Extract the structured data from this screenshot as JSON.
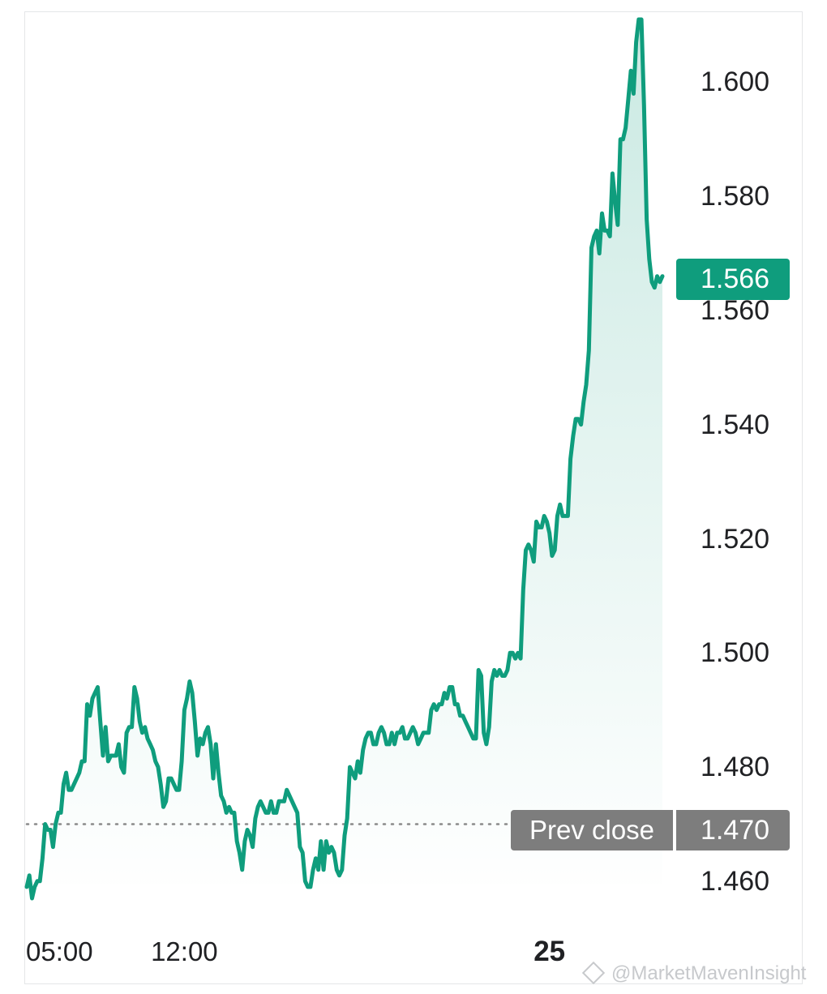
{
  "chart_data": {
    "type": "area",
    "ylim": [
      1.456,
      1.611
    ],
    "y_ticks": [
      "1.600",
      "1.580",
      "1.560",
      "1.540",
      "1.520",
      "1.500",
      "1.480",
      "1.460"
    ],
    "y_tick_values": [
      1.6,
      1.58,
      1.56,
      1.54,
      1.52,
      1.5,
      1.48,
      1.46
    ],
    "x_ticks": [
      {
        "label": "05:00",
        "index": 0
      },
      {
        "label": "12:00",
        "index": 60
      },
      {
        "label": "25",
        "index": 199,
        "bold": true
      }
    ],
    "current_price": "1.566",
    "current_value": 1.566,
    "prev_close_label": "Prev close",
    "prev_close": "1.470",
    "prev_close_value": 1.47,
    "line_color": "#0f9d7d",
    "series": [
      {
        "values": [
          1.459,
          1.461,
          1.457,
          1.459,
          1.46,
          1.46,
          1.464,
          1.47,
          1.469,
          1.469,
          1.466,
          1.47,
          1.472,
          1.472,
          1.477,
          1.479,
          1.476,
          1.476,
          1.477,
          1.478,
          1.479,
          1.481,
          1.481,
          1.491,
          1.489,
          1.492,
          1.493,
          1.494,
          1.488,
          1.482,
          1.487,
          1.481,
          1.482,
          1.482,
          1.482,
          1.484,
          1.48,
          1.479,
          1.486,
          1.487,
          1.487,
          1.494,
          1.492,
          1.488,
          1.486,
          1.487,
          1.485,
          1.484,
          1.483,
          1.481,
          1.48,
          1.477,
          1.473,
          1.474,
          1.478,
          1.478,
          1.477,
          1.476,
          1.476,
          1.481,
          1.49,
          1.492,
          1.495,
          1.493,
          1.488,
          1.482,
          1.485,
          1.484,
          1.486,
          1.487,
          1.484,
          1.478,
          1.484,
          1.479,
          1.475,
          1.474,
          1.472,
          1.473,
          1.472,
          1.472,
          1.467,
          1.465,
          1.462,
          1.467,
          1.469,
          1.468,
          1.466,
          1.471,
          1.473,
          1.474,
          1.473,
          1.472,
          1.472,
          1.474,
          1.472,
          1.472,
          1.474,
          1.474,
          1.474,
          1.476,
          1.475,
          1.474,
          1.473,
          1.472,
          1.466,
          1.465,
          1.46,
          1.459,
          1.459,
          1.462,
          1.464,
          1.462,
          1.467,
          1.462,
          1.467,
          1.465,
          1.466,
          1.465,
          1.462,
          1.461,
          1.462,
          1.468,
          1.471,
          1.48,
          1.479,
          1.478,
          1.481,
          1.479,
          1.483,
          1.485,
          1.486,
          1.486,
          1.484,
          1.484,
          1.486,
          1.487,
          1.486,
          1.484,
          1.484,
          1.486,
          1.484,
          1.486,
          1.486,
          1.487,
          1.485,
          1.485,
          1.486,
          1.487,
          1.486,
          1.484,
          1.485,
          1.486,
          1.486,
          1.486,
          1.49,
          1.491,
          1.49,
          1.491,
          1.491,
          1.493,
          1.492,
          1.494,
          1.494,
          1.491,
          1.491,
          1.489,
          1.489,
          1.488,
          1.487,
          1.486,
          1.485,
          1.485,
          1.497,
          1.496,
          1.486,
          1.484,
          1.487,
          1.495,
          1.497,
          1.496,
          1.497,
          1.496,
          1.496,
          1.497,
          1.5,
          1.5,
          1.499,
          1.5,
          1.499,
          1.511,
          1.518,
          1.519,
          1.518,
          1.516,
          1.523,
          1.522,
          1.522,
          1.524,
          1.523,
          1.521,
          1.517,
          1.518,
          1.524,
          1.526,
          1.524,
          1.524,
          1.524,
          1.534,
          1.538,
          1.541,
          1.541,
          1.54,
          1.544,
          1.547,
          1.553,
          1.571,
          1.573,
          1.574,
          1.57,
          1.577,
          1.574,
          1.574,
          1.573,
          1.584,
          1.579,
          1.575,
          1.59,
          1.59,
          1.592,
          1.597,
          1.602,
          1.598,
          1.607,
          1.611,
          1.611,
          1.596,
          1.576,
          1.569,
          1.565,
          1.564,
          1.566,
          1.565,
          1.566
        ]
      }
    ]
  },
  "watermark": {
    "text": "@MarketMavenInsight"
  }
}
